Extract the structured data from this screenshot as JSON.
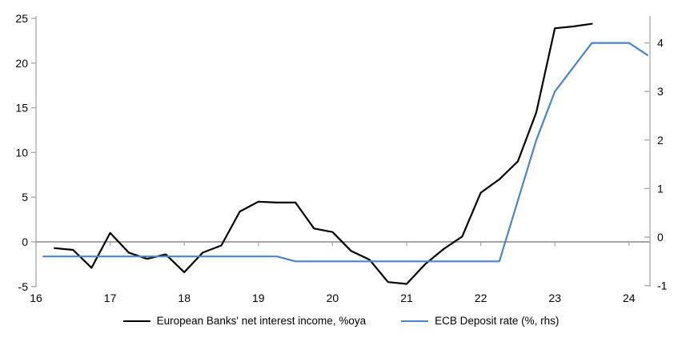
{
  "chart_data": {
    "type": "line",
    "title": "",
    "x_axis": {
      "ticks": [
        16,
        17,
        18,
        19,
        20,
        21,
        22,
        23,
        24
      ],
      "min": 16,
      "max": 24.3
    },
    "left_axis": {
      "ticks": [
        25,
        20,
        15,
        10,
        5,
        0,
        -5
      ],
      "min": -5,
      "max": 25.3
    },
    "right_axis": {
      "ticks": [
        4,
        3,
        2,
        1,
        0,
        -1
      ],
      "min": -1,
      "max": 4.55
    },
    "grid": "zero-line-only",
    "legend_position": "bottom-center",
    "series": [
      {
        "name": "European Banks' net interest income, %oya",
        "axis": "left",
        "color": "#000000",
        "x": [
          16.25,
          16.5,
          16.75,
          17.0,
          17.25,
          17.5,
          17.75,
          18.0,
          18.25,
          18.5,
          18.75,
          19.0,
          19.25,
          19.5,
          19.75,
          20.0,
          20.25,
          20.5,
          20.75,
          21.0,
          21.25,
          21.5,
          21.75,
          22.0,
          22.25,
          22.5,
          22.75,
          23.0,
          23.25,
          23.5
        ],
        "values": [
          -0.7,
          -0.9,
          -2.9,
          1.0,
          -1.2,
          -1.9,
          -1.4,
          -3.4,
          -1.2,
          -0.4,
          3.4,
          4.5,
          4.4,
          4.4,
          1.5,
          1.1,
          -1.0,
          -2.0,
          -4.5,
          -4.7,
          -2.5,
          -0.8,
          0.6,
          5.5,
          7.0,
          9.0,
          14.5,
          23.9,
          24.1,
          24.4
        ]
      },
      {
        "name": "ECB Deposit rate (%, rhs)",
        "axis": "right",
        "color": "#4d84c4",
        "x": [
          16.1,
          16.25,
          16.5,
          16.75,
          17.0,
          17.25,
          17.5,
          17.75,
          18.0,
          18.25,
          18.5,
          18.75,
          19.0,
          19.25,
          19.5,
          19.75,
          20.0,
          20.25,
          20.5,
          20.75,
          21.0,
          21.25,
          21.5,
          21.75,
          22.0,
          22.25,
          22.5,
          22.75,
          23.0,
          23.25,
          23.5,
          23.75,
          24.0,
          24.25
        ],
        "values": [
          -0.4,
          -0.4,
          -0.4,
          -0.4,
          -0.4,
          -0.4,
          -0.4,
          -0.4,
          -0.4,
          -0.4,
          -0.4,
          -0.4,
          -0.4,
          -0.4,
          -0.5,
          -0.5,
          -0.5,
          -0.5,
          -0.5,
          -0.5,
          -0.5,
          -0.5,
          -0.5,
          -0.5,
          -0.5,
          -0.5,
          0.75,
          2.0,
          3.0,
          3.5,
          4.0,
          4.0,
          4.0,
          3.75
        ]
      }
    ]
  },
  "colors": {
    "background": "#ffffff",
    "axis_line": "#a6a6a6",
    "zero_line": "#a6a6a6",
    "tick_label": "#000000"
  }
}
